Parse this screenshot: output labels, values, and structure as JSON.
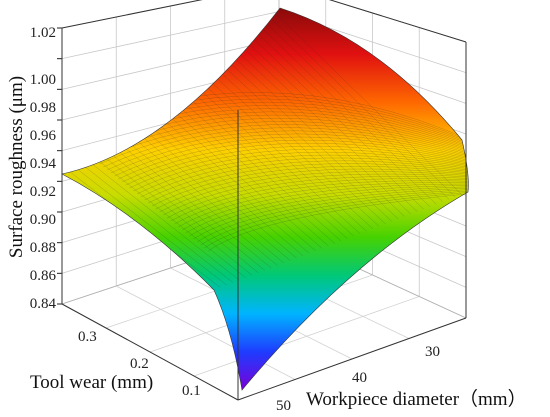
{
  "chart_data": {
    "type": "surface",
    "title": "",
    "zlabel": "Surface roughness (μm)",
    "ylabel": "Tool wear (mm)",
    "xlabel": "Workpiece diameter（mm）",
    "z_ticks": [
      "0.84",
      "0.86",
      "0.88",
      "0.90",
      "0.92",
      "0.94",
      "0.96",
      "0.98",
      "1.00",
      "1.02"
    ],
    "tool_wear_ticks": [
      "0.1",
      "0.2",
      "0.3"
    ],
    "diameter_ticks": [
      "30",
      "40",
      "50"
    ],
    "zlim": [
      0.84,
      1.02
    ],
    "tool_wear_range": [
      0.05,
      0.35
    ],
    "diameter_range": [
      25,
      55
    ],
    "grid": true,
    "colormap": [
      "#7a00d9",
      "#1e3cff",
      "#00b4ff",
      "#00c878",
      "#46d200",
      "#c8dc00",
      "#ffd000",
      "#ff6a00",
      "#e01010",
      "#8a0a0a"
    ],
    "surface_samples": [
      {
        "tool_wear": 0.35,
        "diameter": 25,
        "roughness": 1.02
      },
      {
        "tool_wear": 0.35,
        "diameter": 55,
        "roughness": 0.925
      },
      {
        "tool_wear": 0.05,
        "diameter": 25,
        "roughness": 0.92
      },
      {
        "tool_wear": 0.05,
        "diameter": 55,
        "roughness": 0.845
      }
    ]
  }
}
